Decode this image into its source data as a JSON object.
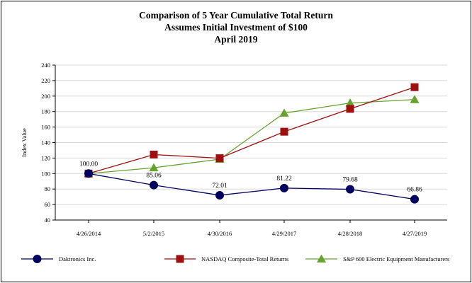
{
  "chart_data": {
    "type": "line",
    "title": "Comparison of 5 Year Cumulative Total Return",
    "subtitle_1": "Assumes Initial Investment of $100",
    "subtitle_2": "April 2019",
    "ylabel": "Index Value",
    "xlabel": "",
    "ylim": [
      40,
      240
    ],
    "yticks": [
      40,
      60,
      80,
      100,
      120,
      140,
      160,
      180,
      200,
      220,
      240
    ],
    "ytick_labels": [
      "40",
      "60",
      "80",
      "100",
      "120",
      "140",
      "160",
      "180",
      "200",
      "220",
      "240"
    ],
    "grid": true,
    "legend_position": "bottom",
    "categories": [
      "4/26/2014",
      "5/2/2015",
      "4/30/2016",
      "4/29/2017",
      "4/28/2018",
      "4/27/2019"
    ],
    "series": [
      {
        "name": "Daktronics Inc.",
        "color": "#000060",
        "marker": "circle",
        "values": [
          100.0,
          85.06,
          72.01,
          81.22,
          79.68,
          66.86
        ],
        "data_labels": [
          "100.00",
          "85.06",
          "72.01",
          "81.22",
          "79.68",
          "66.86"
        ]
      },
      {
        "name": "NASDAQ Composite-Total Returns",
        "color": "#9e1010",
        "marker": "square",
        "values": [
          100.0,
          124.5,
          119.8,
          154.0,
          183.5,
          211.5
        ]
      },
      {
        "name": "S&P 600 Electric Equipment Manufacturers",
        "color": "#66a32e",
        "marker": "triangle",
        "values": [
          100.0,
          107.5,
          118.5,
          178.0,
          191.0,
          195.5
        ]
      }
    ]
  }
}
